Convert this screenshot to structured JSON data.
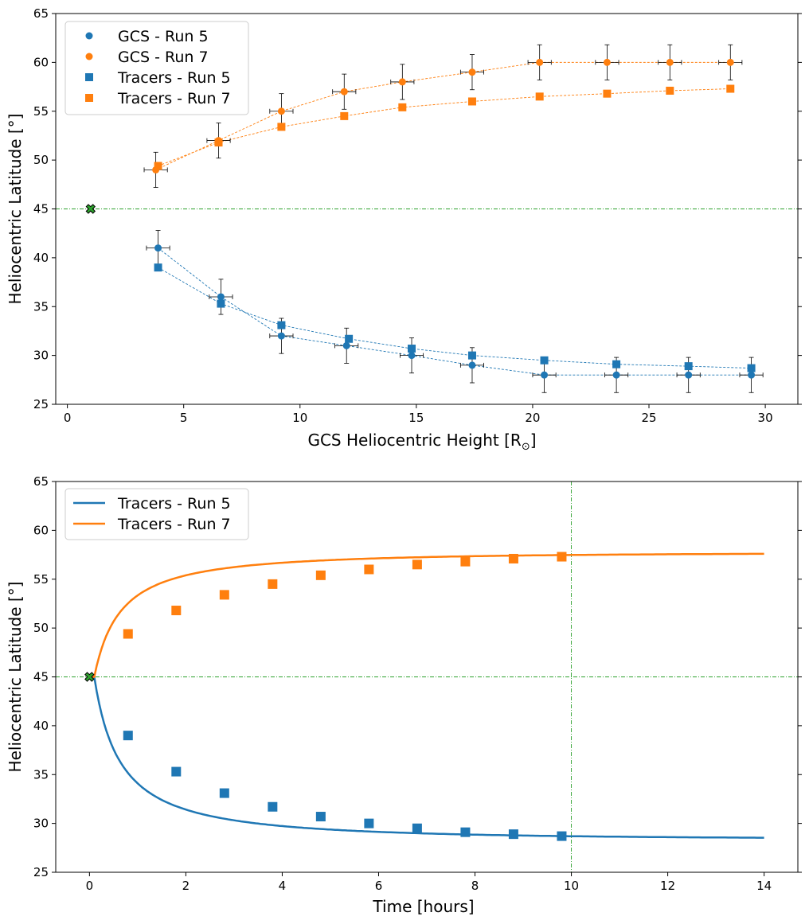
{
  "colors": {
    "run5": "#1f77b4",
    "run7": "#ff7f0e",
    "start_marker": "#2ca02c",
    "guide": "#2ca02c",
    "errorbar": "#000000"
  },
  "chart_data": [
    {
      "type": "scatter",
      "title": "",
      "xlabel": "GCS Heliocentric Height [R",
      "xlabel_sub": "⊙",
      "xlabel_end": "]",
      "ylabel": "Heliocentric Latitude [°]",
      "xlim": [
        -0.5,
        31.4
      ],
      "ylim": [
        25,
        65
      ],
      "xticks": [
        0,
        5,
        10,
        15,
        20,
        25,
        30
      ],
      "yticks": [
        25,
        30,
        35,
        40,
        45,
        50,
        55,
        60,
        65
      ],
      "legend_position": "top-left",
      "series": [
        {
          "name": "GCS - Run 5",
          "marker": "circle",
          "color_key": "run5",
          "x": [
            3.9,
            6.6,
            9.2,
            12.0,
            14.8,
            17.4,
            20.5,
            23.6,
            26.7,
            29.4
          ],
          "y": [
            41,
            36,
            32,
            31,
            30,
            29,
            28,
            28,
            28,
            28
          ],
          "xerr": 0.5,
          "yerr": 1.8
        },
        {
          "name": "GCS - Run 7",
          "marker": "circle",
          "color_key": "run7",
          "x": [
            3.8,
            6.5,
            9.2,
            11.9,
            14.4,
            17.4,
            20.3,
            23.2,
            25.9,
            28.5
          ],
          "y": [
            49,
            52,
            55,
            57,
            58,
            59,
            60,
            60,
            60,
            60
          ],
          "xerr": 0.5,
          "yerr": 1.8
        },
        {
          "name": "Tracers - Run 5",
          "marker": "square",
          "color_key": "run5",
          "x": [
            3.9,
            6.6,
            9.2,
            12.1,
            14.8,
            17.4,
            20.5,
            23.6,
            26.7,
            29.4
          ],
          "y": [
            39.0,
            35.3,
            33.1,
            31.7,
            30.7,
            30.0,
            29.5,
            29.1,
            28.9,
            28.7
          ]
        },
        {
          "name": "Tracers - Run 7",
          "marker": "square",
          "color_key": "run7",
          "x": [
            3.9,
            6.5,
            9.2,
            11.9,
            14.4,
            17.4,
            20.3,
            23.2,
            25.9,
            28.5
          ],
          "y": [
            49.4,
            51.8,
            53.4,
            54.5,
            55.4,
            56.0,
            56.5,
            56.8,
            57.1,
            57.3
          ]
        }
      ],
      "start_point": {
        "x": 1.0,
        "y": 45
      },
      "hline_y": 45
    },
    {
      "type": "line",
      "title": "",
      "xlabel": "Time [hours]",
      "ylabel": "Heliocentric Latitude [°]",
      "xlim": [
        -0.7,
        14.7
      ],
      "ylim": [
        25,
        65
      ],
      "xticks": [
        0,
        2,
        4,
        6,
        8,
        10,
        12,
        14
      ],
      "yticks": [
        25,
        30,
        35,
        40,
        45,
        50,
        55,
        60,
        65
      ],
      "legend_position": "top-left",
      "series": [
        {
          "name": "Tracers - Run 5",
          "color_key": "run5",
          "start": 45,
          "end": 28.4,
          "tau": 1.8,
          "marker_x": [
            0.8,
            1.8,
            2.8,
            3.8,
            4.8,
            5.8,
            6.8,
            7.8,
            8.8,
            9.8
          ],
          "marker_y": [
            39.0,
            35.3,
            33.1,
            31.7,
            30.7,
            30.0,
            29.5,
            29.1,
            28.9,
            28.7
          ]
        },
        {
          "name": "Tracers - Run 7",
          "color_key": "run7",
          "start": 45,
          "end": 57.7,
          "tau": 1.8,
          "marker_x": [
            0.8,
            1.8,
            2.8,
            3.8,
            4.8,
            5.8,
            6.8,
            7.8,
            8.8,
            9.8
          ],
          "marker_y": [
            49.4,
            51.8,
            53.4,
            54.5,
            55.4,
            56.0,
            56.5,
            56.8,
            57.1,
            57.3
          ]
        }
      ],
      "curve_x_range": [
        0,
        14
      ],
      "start_point": {
        "x": 0,
        "y": 45
      },
      "hline_y": 45,
      "vline_x": 10
    }
  ]
}
